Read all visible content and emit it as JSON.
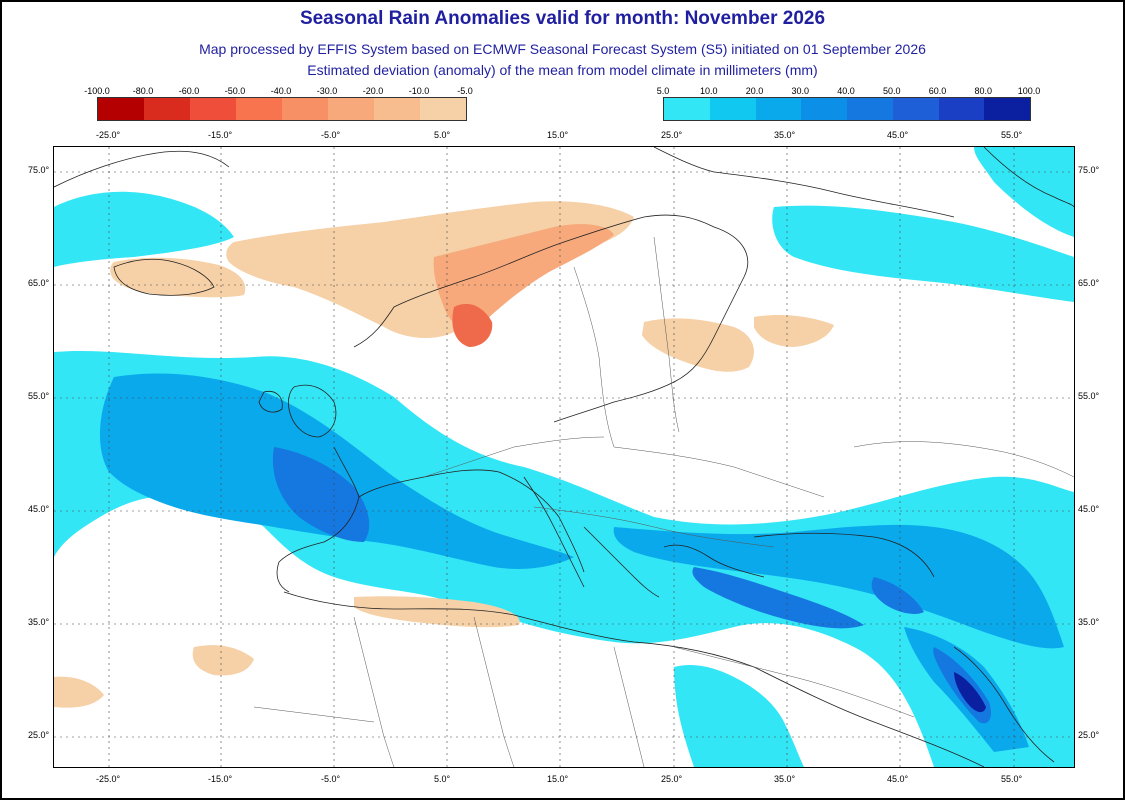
{
  "header": {
    "title": "Seasonal Rain Anomalies valid for month: November 2026",
    "subtitle1": "Map processed by EFFIS System based on ECMWF Seasonal Forecast System (S5) initiated on 01 September 2026",
    "subtitle2": "Estimated deviation (anomaly) of the mean from model climate in millimeters (mm)"
  },
  "legend_negative": {
    "labels": [
      "-100.0",
      "-80.0",
      "-60.0",
      "-50.0",
      "-40.0",
      "-30.0",
      "-20.0",
      "-10.0",
      "-5.0"
    ],
    "colors": [
      "#b40000",
      "#d92b1e",
      "#ef4e3a",
      "#f7744f",
      "#f89066",
      "#f8a97c",
      "#f7bd8f",
      "#f6d0a6"
    ]
  },
  "legend_positive": {
    "labels": [
      "5.0",
      "10.0",
      "20.0",
      "30.0",
      "40.0",
      "50.0",
      "60.0",
      "80.0",
      "100.0"
    ],
    "colors": [
      "#33e6f5",
      "#11c8f0",
      "#0aa9ec",
      "#0c8fe6",
      "#1577e0",
      "#1e5fd8",
      "#1a3fc4",
      "#0a20a0"
    ]
  },
  "axes": {
    "lon_labels": [
      "-25.0°",
      "-15.0°",
      "-5.0°",
      "5.0°",
      "15.0°",
      "25.0°",
      "35.0°",
      "45.0°",
      "55.0°"
    ],
    "lat_labels": [
      "75.0°",
      "65.0°",
      "55.0°",
      "45.0°",
      "35.0°",
      "25.0°"
    ]
  },
  "colors": {
    "title_blue": "#1f1fa0",
    "dry": "#f6d0a6",
    "dry_mid": "#f7a97c",
    "dry_strong": "#ef6a4a",
    "wet_light": "#33e6f5",
    "wet_mid": "#0aa9ec",
    "wet_strong": "#1577e0",
    "wet_max": "#0a20a0"
  }
}
